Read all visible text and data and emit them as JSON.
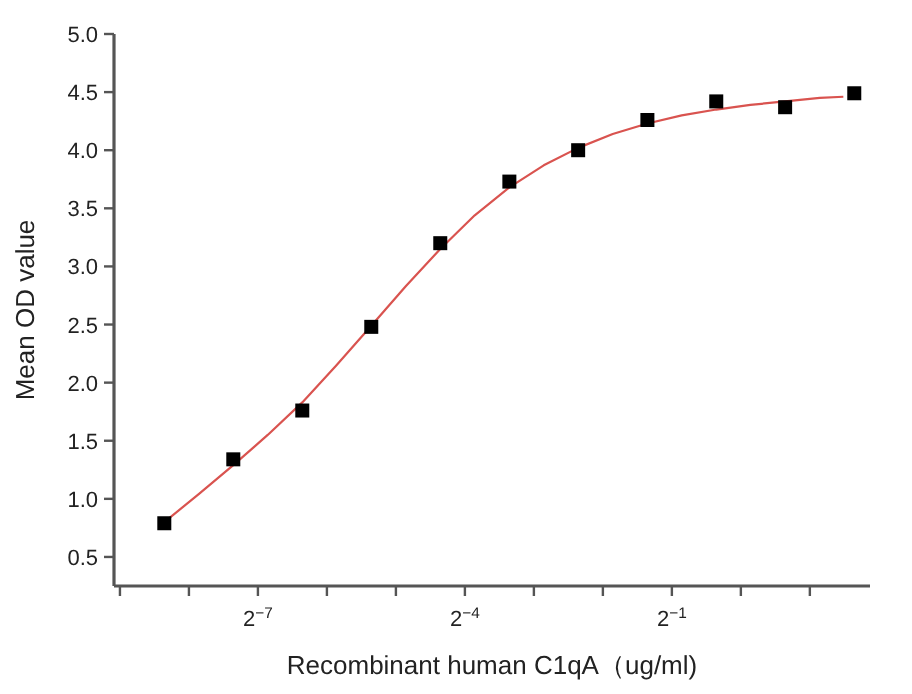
{
  "chart_data": {
    "type": "scatter",
    "xlabel": "Recombinant human C1qA（ug/ml)",
    "ylabel": "Mean OD value",
    "log": "x",
    "grid": false,
    "marker": "square",
    "xlim": [
      0.00184,
      3.66
    ],
    "ylim": [
      0.25,
      5.0
    ],
    "xticks": [
      {
        "value": 0.001953125,
        "label": null
      },
      {
        "value": 0.00390625,
        "label": null
      },
      {
        "value": 0.0078125,
        "label": "2$^{−7}$"
      },
      {
        "value": 0.015625,
        "label": null
      },
      {
        "value": 0.03125,
        "label": null
      },
      {
        "value": 0.0625,
        "label": "2$^{−4}$"
      },
      {
        "value": 0.125,
        "label": null
      },
      {
        "value": 0.25,
        "label": null
      },
      {
        "value": 0.5,
        "label": "2$^{−1}$"
      },
      {
        "value": 1,
        "label": null
      },
      {
        "value": 2,
        "label": null
      }
    ],
    "yticks": [
      {
        "value": 0.5,
        "label": "0.5"
      },
      {
        "value": 1,
        "label": "1.0"
      },
      {
        "value": 1.5,
        "label": "1.5"
      },
      {
        "value": 2,
        "label": "2.0"
      },
      {
        "value": 2.5,
        "label": "2.5"
      },
      {
        "value": 3,
        "label": "3.0"
      },
      {
        "value": 3.5,
        "label": "3.5"
      },
      {
        "value": 4,
        "label": "4.0"
      },
      {
        "value": 4.5,
        "label": "4.5"
      },
      {
        "value": 5,
        "label": "5.0"
      }
    ],
    "series": [
      {
        "type": "line",
        "marker": "none",
        "color": "#d9534f",
        "x": [
          0.00305,
          0.00431,
          0.0061,
          0.00862,
          0.0122,
          0.0172,
          0.0244,
          0.0345,
          0.0488,
          0.069,
          0.0977,
          0.138,
          0.195,
          0.276,
          0.391,
          0.552,
          0.781,
          1.1,
          1.56,
          2.21,
          2.8
        ],
        "values": [
          0.8,
          1.04,
          1.29,
          1.55,
          1.83,
          2.15,
          2.49,
          2.83,
          3.15,
          3.44,
          3.68,
          3.87,
          4.02,
          4.14,
          4.23,
          4.3,
          4.35,
          4.39,
          4.42,
          4.45,
          4.46
        ]
      },
      {
        "color": "#000000",
        "x": [
          0.00305,
          0.0061,
          0.0122,
          0.0244,
          0.0488,
          0.0977,
          0.195,
          0.391,
          0.781,
          1.56,
          3.125
        ],
        "values": [
          0.79,
          1.34,
          1.76,
          2.48,
          3.2,
          3.73,
          4.0,
          4.26,
          4.42,
          4.37,
          4.49
        ]
      }
    ]
  }
}
